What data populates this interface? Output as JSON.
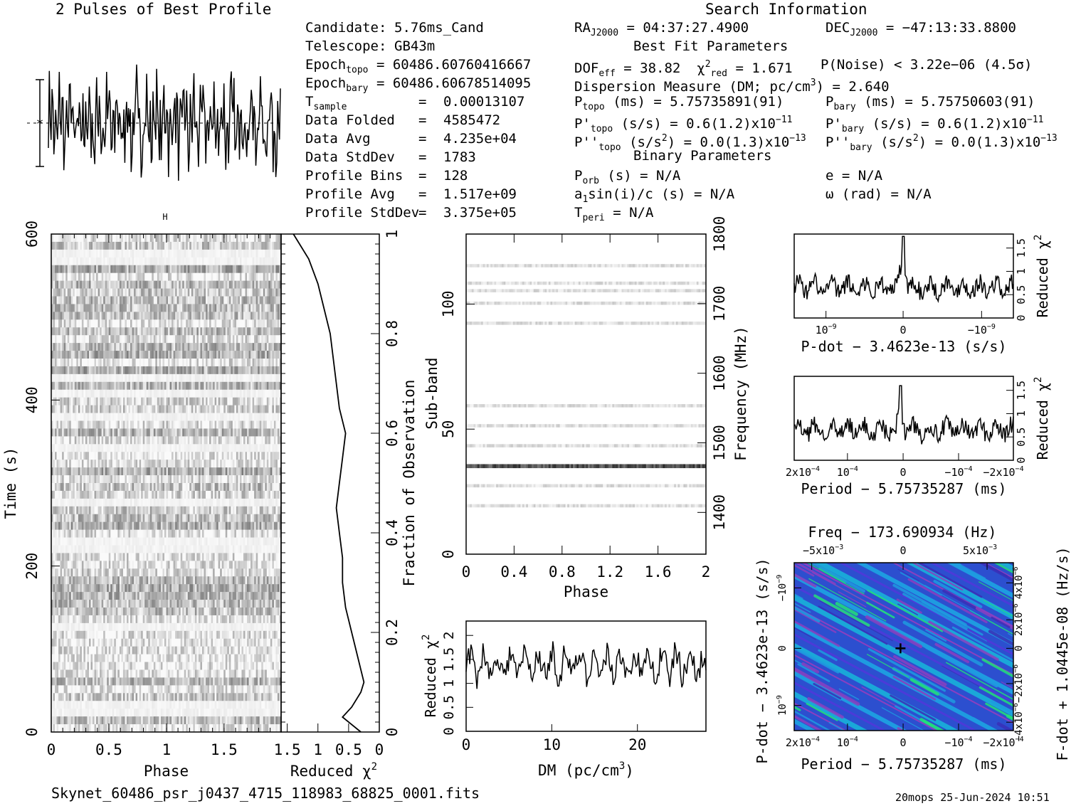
{
  "titles": {
    "profile": "2 Pulses of Best Profile",
    "search": "Search Information",
    "best_fit": "Best Fit Parameters",
    "binary": "Binary Parameters"
  },
  "header_left": [
    {
      "label": "Candidate:",
      "value": "5.76ms_Cand"
    },
    {
      "label": "Telescope:",
      "value": "GB43m"
    },
    {
      "label": "Epoch",
      "sub": "topo",
      "value": "= 60486.60760416667"
    },
    {
      "label": "Epoch",
      "sub": "bary",
      "value": "= 60486.60678514095"
    },
    {
      "label": "T",
      "sub": "sample",
      "value": "0.00013107"
    },
    {
      "label": "Data Folded",
      "value": "4585472"
    },
    {
      "label": "Data Avg",
      "value": "4.235e+04"
    },
    {
      "label": "Data StdDev",
      "value": "1783"
    },
    {
      "label": "Profile Bins",
      "value": "128"
    },
    {
      "label": "Profile Avg",
      "value": "1.517e+09"
    },
    {
      "label": "Profile StdDev",
      "value": "3.375e+05"
    }
  ],
  "equals": "=",
  "search": {
    "ra_label": "RA",
    "ra_sub": "J2000",
    "ra_value": "= 04:37:27.4900",
    "dec_label": "DEC",
    "dec_sub": "J2000",
    "dec_value": "= −47:13:33.8800"
  },
  "best_fit": {
    "dof": "DOF",
    "dof_sub": "eff",
    "dof_value": "= 38.82",
    "chi": "χ",
    "chi_sup": "2",
    "chi_sub": "red",
    "chi_value": "= 1.671",
    "pnoise": "P(Noise) < 3.22e−06  (4.5σ)",
    "dm_text": "Dispersion Measure (DM; pc/cm",
    "dm_sup": "3",
    "dm_value": ") = 2.640",
    "ptopo": "P",
    "ptopo_sub": "topo",
    "ptopo_value": "(ms) =  5.75735891(91)",
    "pbary": "P",
    "pbary_sub": "bary",
    "pbary_value": "(ms) =  5.75750603(91)",
    "pdtopo": "P'",
    "pdtopo_sub": "topo",
    "pdtopo_value": "(s/s) =  0.6(1.2)x10",
    "pdtopo_exp": "−11",
    "pdbary": "P'",
    "pdbary_sub": "bary",
    "pdbary_value": "(s/s) =  0.6(1.2)x10",
    "pdbary_exp": "−11",
    "pddtopo": "P''",
    "pddtopo_sub": "topo",
    "pddtopo_value": "(s/s",
    "pddtopo_sup": "2",
    "pddtopo_value2": ") = 0.0(1.3)x10",
    "pddtopo_exp": "−13",
    "pddbary": "P''",
    "pddbary_sub": "bary",
    "pddbary_value": "(s/s",
    "pddbary_sup": "2",
    "pddbary_value2": ") = 0.0(1.3)x10",
    "pddbary_exp": "−13"
  },
  "binary": {
    "porb": "P",
    "porb_sub": "orb",
    "porb_value": "(s) = N/A",
    "a1": "a",
    "a1_sub": "1",
    "a1_value": "sin(i)/c (s) = N/A",
    "tperi": "T",
    "tperi_sub": "peri",
    "tperi_value": "= N/A",
    "e": "e = N/A",
    "omega": "ω (rad) = N/A"
  },
  "footer": {
    "filename": "Skynet_60486_psr_j0437_4715_118983_68825_0001.fits",
    "stamp": "20mops 25-Jun-2024 10:51"
  },
  "chart_data": [
    {
      "type": "line",
      "title": "2 Pulses of Best Profile",
      "x_range": [
        0,
        2
      ],
      "description_of_marks": "pulse profile, two rotations"
    },
    {
      "type": "heatmap",
      "name": "time_vs_phase",
      "xlabel": "Phase",
      "ylabel": "Time (s)",
      "x_ticks": [
        "0",
        "0.5",
        "1",
        "1.5"
      ],
      "y_ticks": [
        "0",
        "200",
        "400",
        "600"
      ],
      "xlim": [
        0,
        2
      ],
      "ylim": [
        0,
        600
      ],
      "right_axis_label": "Fraction of Observation",
      "right_ticks": [
        "0",
        "0.2",
        "0.4",
        "0.6",
        "0.8",
        "1"
      ]
    },
    {
      "type": "line",
      "name": "time_reduced_chi2",
      "xlabel": "Reduced χ",
      "xlabel_sup": "2",
      "x_ticks": [
        "1.5",
        "1",
        "0.5",
        "0"
      ],
      "xlim": [
        1.6,
        0
      ],
      "y": [
        0,
        0.03,
        0.05,
        0.08,
        0.1,
        0.15,
        0.2,
        0.25,
        0.3,
        0.35,
        0.4,
        0.45,
        0.5,
        0.55,
        0.6,
        0.65,
        0.7,
        0.75,
        0.8,
        0.85,
        0.9,
        0.95,
        1.0
      ],
      "x": [
        0.3,
        0.6,
        0.45,
        0.3,
        0.25,
        0.35,
        0.45,
        0.55,
        0.6,
        0.6,
        0.65,
        0.7,
        0.65,
        0.6,
        0.55,
        0.65,
        0.7,
        0.75,
        0.8,
        0.9,
        1.0,
        1.15,
        1.4
      ]
    },
    {
      "type": "heatmap",
      "name": "subband_vs_phase",
      "xlabel": "Phase",
      "ylabel": "Sub-band",
      "right_axis_label": "Frequency (MHz)",
      "x_ticks": [
        "0",
        "0.4",
        "0.8",
        "1.2",
        "1.6",
        "2"
      ],
      "y_ticks": [
        "0",
        "50",
        "100"
      ],
      "right_ticks": [
        "1400",
        "1500",
        "1600",
        "1700",
        "1800"
      ],
      "xlim": [
        0,
        2
      ],
      "ylim": [
        0,
        128
      ],
      "bright_bands": [
        19,
        27,
        35,
        43,
        51,
        59,
        92,
        100,
        105,
        108,
        115
      ]
    },
    {
      "type": "line",
      "name": "dm_vs_chi2",
      "xlabel": "DM (pc/cm",
      "xlabel_sup": "3",
      "xlabel_end": ")",
      "ylabel": "Reduced χ",
      "ylabel_sup": "2",
      "x_ticks": [
        "0",
        "10",
        "20"
      ],
      "y_ticks": [
        "0",
        "0.5",
        "1",
        "1.5",
        "2"
      ],
      "xlim": [
        0,
        28
      ],
      "ylim": [
        0,
        2.3
      ]
    },
    {
      "type": "line",
      "name": "pdot_vs_chi2",
      "xlabel": "P-dot − 3.4623e-13 (s/s)",
      "ylabel": "Reduced χ",
      "ylabel_sup": "2",
      "x_ticks": [
        "10",
        "0",
        "−10"
      ],
      "x_tick_exp": "−9",
      "y_ticks": [
        "0",
        "0.5",
        "1",
        "1.5"
      ],
      "ylim": [
        0,
        1.8
      ],
      "peak": 1.75
    },
    {
      "type": "line",
      "name": "period_vs_chi2",
      "xlabel": "Period − 5.75735287 (ms)",
      "ylabel": "Reduced χ",
      "ylabel_sup": "2",
      "x_ticks": [
        "2x10",
        "10",
        "0",
        "−10",
        "−2x10"
      ],
      "x_tick_exp": "−4",
      "y_ticks": [
        "0",
        "0.5",
        "1",
        "1.5"
      ],
      "ylim": [
        0,
        1.8
      ],
      "peak": 1.6
    },
    {
      "type": "heatmap",
      "name": "period_pdot_plane",
      "title": "Freq − 173.690934 (Hz)",
      "xlabel": "Period − 5.75735287 (ms)",
      "ylabel": "P-dot − 3.4623e-13 (s/s)",
      "right_axis_label": "F-dot + 1.0445e-08 (Hz/s)",
      "top_ticks": [
        "−5x10",
        "0",
        "5x10"
      ],
      "top_tick_exp": "−3",
      "bottom_ticks": [
        "2x10",
        "10",
        "0",
        "−10",
        "−2x10"
      ],
      "bottom_tick_exp": "−4",
      "left_ticks": [
        "−10",
        "0",
        "10"
      ],
      "left_tick_exp": "−9",
      "right_ticks": [
        "4x10",
        "2x10",
        "0",
        "−2x10",
        "−4x10"
      ],
      "right_tick_exp": "−6",
      "colors": {
        "base": "#2c4fcf",
        "mid": "#1e9be0",
        "high": "#22e07a",
        "low": "#8a3fc0"
      }
    }
  ]
}
